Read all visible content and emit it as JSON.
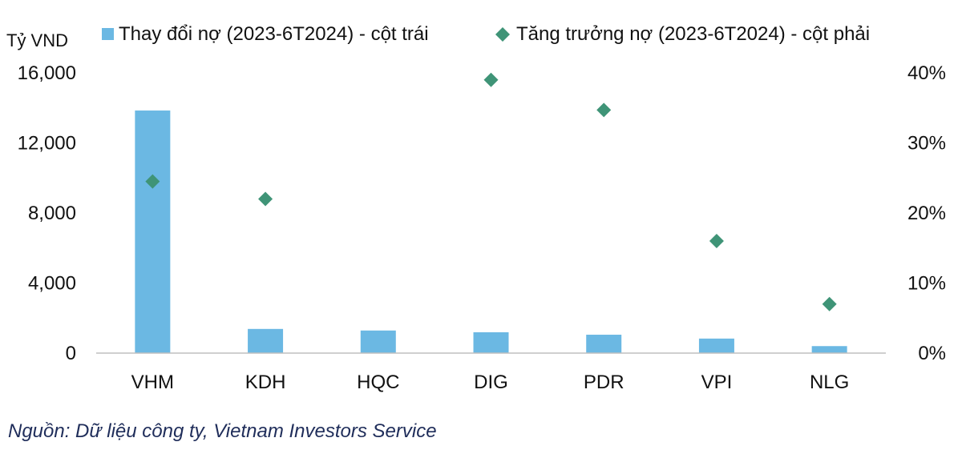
{
  "chart_data": {
    "type": "bar",
    "categories": [
      "VHM",
      "KDH",
      "HQC",
      "DIG",
      "PDR",
      "VPI",
      "NLG"
    ],
    "series": [
      {
        "name": "Thay đổi nợ (2023-6T2024) - cột trái",
        "type": "bar",
        "axis": "left",
        "color": "#6bb8e3",
        "values": [
          13850,
          1380,
          1290,
          1190,
          1050,
          830,
          400
        ]
      },
      {
        "name": "Tăng trưởng nợ (2023-6T2024) - cột phải",
        "type": "scatter",
        "marker": "diamond",
        "axis": "right",
        "color": "#3f9477",
        "values": [
          24.5,
          22.0,
          null,
          39.0,
          34.7,
          16.0,
          7.0
        ]
      }
    ],
    "y_left": {
      "label": "Tỷ VND",
      "range": [
        0,
        16000
      ],
      "ticks": [
        "0",
        "4,000",
        "8,000",
        "12,000",
        "16,000"
      ]
    },
    "y_right": {
      "range": [
        0,
        40
      ],
      "ticks": [
        "0%",
        "10%",
        "20%",
        "30%",
        "40%"
      ]
    },
    "grid": false,
    "legend_position": "top"
  },
  "source_note": "Nguồn: Dữ liệu công ty, Vietnam Investors Service"
}
